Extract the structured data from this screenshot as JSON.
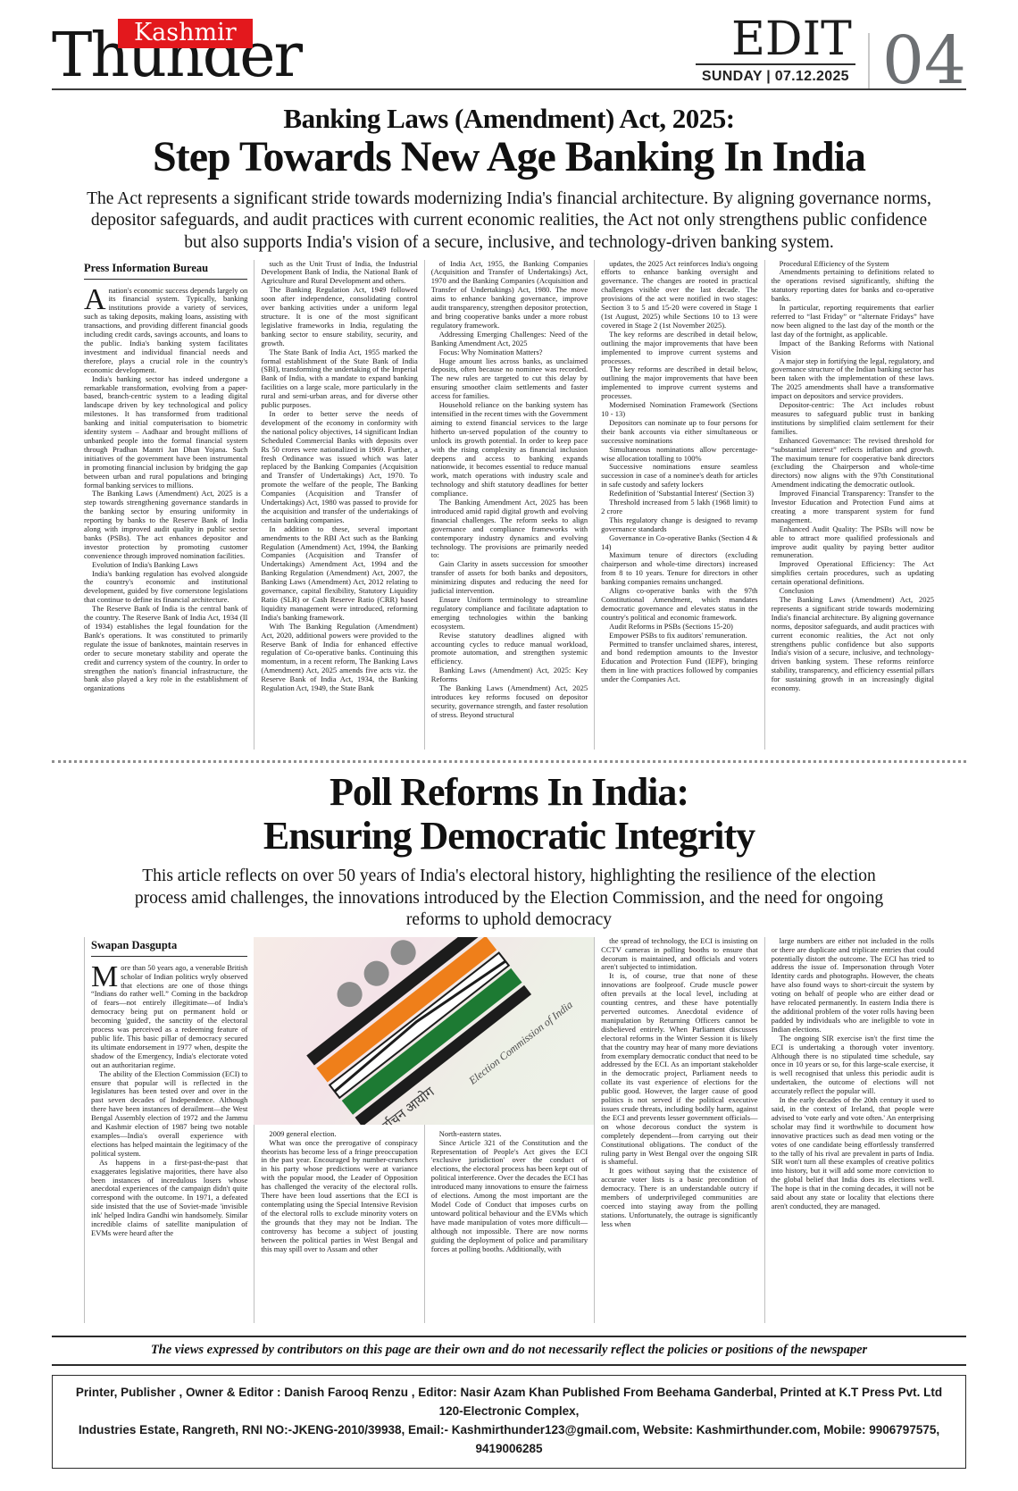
{
  "masthead": {
    "brand_top": "Kashmir",
    "brand_main": "Thunder",
    "section": "EDIT",
    "date": "SUNDAY | 07.12.2025",
    "page_number": "04"
  },
  "colors": {
    "brand_red": "#e3181d",
    "page_number_gray": "#6d7073",
    "saffron": "#ef7f1a",
    "green": "#1d7a33"
  },
  "article1": {
    "kicker": "Banking Laws (Amendment) Act, 2025:",
    "headline": "Step Towards New Age Banking In India",
    "standfirst": "The Act represents a significant stride towards modernizing India's financial architecture. By aligning governance norms, depositor safeguards, and audit practices with current economic realities, the Act not only strengthens public confidence but also supports India's vision of a secure, inclusive, and technology-driven banking system.",
    "byline": "Press Information Bureau",
    "columns": [
      [
        "A nation's economic success depends largely on its financial system. Typically, banking institutions provide a variety of services, such as taking deposits, making loans, assisting with transactions, and providing different financial goods including credit cards, savings accounts, and loans to the public. India's banking system facilitates investment and individual financial needs and therefore, plays a crucial role in the country's economic development.",
        "India's banking sector has indeed undergone a remarkable transformation, evolving from a paper-based, branch-centric system to a leading digital landscape driven by key technological and policy milestones. It has transformed from traditional banking and initial computerisation to biometric identity system – Aadhaar and brought millions of unbanked people into the formal financial system through Pradhan Mantri Jan Dhan Yojana. Such initiatives of the government have been instrumental in promoting financial inclusion by bridging the gap between urban and rural populations and bringing formal banking services to millions.",
        "The Banking Laws (Amendment) Act, 2025 is a step towards strengthening governance standards in the banking sector by ensuring uniformity in reporting by banks to the Reserve Bank of India along with improved audit quality in public sector banks (PSBs). The act enhances depositor and investor protection by promoting customer convenience through improved nomination facilities.",
        "Evolution of India's Banking Laws",
        "India's banking regulation has evolved alongside the country's economic and institutional development, guided by five cornerstone legislations that continue to define its financial architecture.",
        "The Reserve Bank of India is the central bank of the country. The Reserve Bank of India Act, 1934 (II of 1934) establishes the legal foundation for the Bank's operations. It was constituted to primarily regulate the issue of banknotes, maintain reserves in order to secure monetary stability and operate the credit and currency system of the country. In order to strengthen the nation's financial infrastructure, the bank also played a key role in the establishment of organizations"
      ],
      [
        "such as the Unit Trust of India, the Industrial Development Bank of India, the National Bank of Agriculture and Rural Development and others.",
        "The Banking Regulation Act, 1949 followed soon after independence, consolidating control over banking activities under a uniform legal structure. It is one of the most significant legislative frameworks in India, regulating the banking sector to ensure stability, security, and growth.",
        "The State Bank of India Act, 1955 marked the formal establishment of the State Bank of India (SBI), transforming the undertaking of the Imperial Bank of India, with a mandate to expand banking facilities on a large scale, more particularly in the rural and semi-urban areas, and for diverse other public purposes.",
        "In order to better serve the needs of development of the economy in conformity with the national policy objectives, 14 significant Indian Scheduled Commercial Banks with deposits over Rs 50 crores were nationalized in 1969. Further, a fresh Ordinance was issued which was later replaced by the Banking Companies (Acquisition and Transfer of Undertakings) Act, 1970. To promote the welfare of the people, The Banking Companies (Acquisition and Transfer of Undertakings) Act, 1980 was passed to provide for the acquisition and transfer of the undertakings of certain banking companies.",
        "In addition to these, several important amendments to the RBI Act such as the Banking Regulation (Amendment) Act, 1994, the Banking Companies (Acquisition and Transfer of Undertakings) Amendment Act, 1994 and the Banking Regulation (Amendment) Act, 2007, the Banking Laws (Amendment) Act, 2012 relating to governance, capital flexibility, Statutory Liquidity Ratio (SLR) or Cash Reserve Ratio (CRR) based liquidity management were introduced, reforming India's banking framework.",
        "With The Banking Regulation (Amendment) Act, 2020, additional powers were provided to the Reserve Bank of India for enhanced effective regulation of Co-operative banks. Continuing this momentum, in a recent reform, The Banking Laws (Amendment) Act, 2025 amends five acts viz. the Reserve Bank of India Act, 1934, the Banking Regulation Act, 1949, the State Bank"
      ],
      [
        "of India Act, 1955, the Banking Companies (Acquisition and Transfer of Undertakings) Act, 1970 and the Banking Companies (Acquisition and Transfer of Undertakings) Act, 1980. The move aims to enhance banking governance, improve audit transparency, strengthen depositor protection, and bring cooperative banks under a more robust regulatory framework.",
        "Addressing Emerging Challenges: Need of the Banking Amendment Act, 2025",
        "Focus: Why Nomination Matters?",
        "Huge amount lies across banks, as unclaimed deposits, often because no nominee was recorded. The new rules are targeted to cut this delay by ensuring smoother claim settlements and faster access for families.",
        "Household reliance on the banking system has intensified in the recent times with the Government aiming to extend financial services to the large hitherto un-served population of the country to unlock its growth potential. In order to keep pace with the rising complexity as financial inclusion deepens and access to banking expands nationwide, it becomes essential to reduce manual work, match operations with industry scale and technology and shift statutory deadlines for better compliance.",
        "The Banking Amendment Act, 2025 has been introduced amid rapid digital growth and evolving financial challenges. The reform seeks to align governance and compliance frameworks with contemporary industry dynamics and evolving technology. The provisions are primarily needed to:",
        "Gain Clarity in assets succession for smoother transfer of assets for both banks and depositors, minimizing disputes and reducing the need for judicial intervention.",
        "Ensure Uniform terminology to streamline regulatory compliance and facilitate adaptation to emerging technologies within the banking ecosystem.",
        "Revise statutory deadlines aligned with accounting cycles to reduce manual workload, promote automation, and strengthen systemic efficiency.",
        "Banking Laws (Amendment) Act, 2025: Key Reforms",
        "The Banking Laws (Amendment) Act, 2025 introduces key reforms focused on depositor security, governance strength, and faster resolution of stress. Beyond structural"
      ],
      [
        "updates, the 2025 Act reinforces India's ongoing efforts to enhance banking oversight and governance. The changes are rooted in practical challenges visible over the last decade. The provisions of the act were notified in two stages: Section 3 to 5 and 15-20 were covered in Stage 1 (1st August, 2025) while Sections 10 to 13 were covered in Stage 2 (1st November 2025).",
        "The key reforms are described in detail below, outlining the major improvements that have been implemented to improve current systems and processes.",
        "The key reforms are described in detail below, outlining the major improvements that have been implemented to improve current systems and processes.",
        "Modernised Nomination Framework (Sections 10 - 13)",
        "Depositors can nominate up to four persons for their bank accounts via either simultaneous or successive nominations",
        "Simultaneous nominations allow percentage-wise allocation totalling to 100%",
        "Successive nominations ensure seamless succession in case of a nominee's death for articles in safe custody and safety lockers",
        "Redefinition of 'Substantial Interest' (Section 3)",
        "Threshold increased from 5 lakh (1968 limit) to 2 crore",
        "This regulatory change is designed to revamp governance standards",
        "Governance in Co-operative Banks (Section 4 & 14)",
        "Maximum tenure of directors (excluding chairperson and whole-time directors) increased from 8 to 10 years. Tenure for directors in other banking companies remains unchanged.",
        "Aligns co-operative banks with the 97th Constitutional Amendment, which mandates democratic governance and elevates status in the country's political and economic framework.",
        "Audit Reforms in PSBs (Sections 15-20)",
        "Empower PSBs to fix auditors' remuneration.",
        "Permitted to transfer unclaimed shares, interest, and bond redemption amounts to the Investor Education and Protection Fund (IEPF), bringing them in line with practices followed by companies under the Companies Act."
      ],
      [
        "Procedural Efficiency of the System",
        "Amendments pertaining to definitions related to the operations revised significantly, shifting the statutory reporting dates for banks and co-operative banks.",
        "In particular, reporting requirements that earlier referred to “last Friday” or “alternate Fridays” have now been aligned to the last day of the month or the last day of the fortnight, as applicable.",
        "Impact of the Banking Reforms with National Vision",
        "A major step in fortifying the legal, regulatory, and governance structure of the Indian banking sector has been taken with the implementation of these laws. The 2025 amendments shall have a transformative impact on depositors and service providers.",
        "Depositor-centric: The Act includes robust measures to safeguard public trust in banking institutions by simplified claim settlement for their families.",
        "Enhanced Governance: The revised threshold for “substantial interest” reflects inflation and growth. The maximum tenure for cooperative bank directors (excluding the Chairperson and whole-time directors) now aligns with the 97th Constitutional Amendment indicating the democratic outlook.",
        "Improved Financial Transparency: Transfer to the Investor Education and Protection Fund aims at creating a more transparent system for fund management.",
        "Enhanced Audit Quality: The PSBs will now be able to attract more qualified professionals and improve audit quality by paying better auditor remuneration.",
        "Improved Operational Efficiency: The Act simplifies certain procedures, such as updating certain operational definitions.",
        "Conclusion",
        "The Banking Laws (Amendment) Act, 2025 represents a significant stride towards modernizing India's financial architecture. By aligning governance norms, depositor safeguards, and audit practices with current economic realities, the Act not only strengthens public confidence but also supports India's vision of a secure, inclusive, and technology-driven banking system. These reforms reinforce stability, transparency, and efficiency essential pillars for sustaining growth in an increasingly digital economy."
      ]
    ]
  },
  "article2": {
    "headline_line1": "Poll Reforms In India:",
    "headline_line2": "Ensuring Democratic Integrity",
    "standfirst": "This article reflects on over 50 years of India's electoral history, highlighting the resilience of the election process amid challenges, the innovations introduced by the Election Commission, and the need for ongoing reforms to uphold democracy",
    "byline": "Swapan Dasgupta",
    "image": {
      "hindi_text": "भारत निर्वाचन आयोग",
      "english_text": "Election Commission of India"
    },
    "columns": [
      [
        "More than 50 years ago, a venerable British scholar of Indian politics wryly observed that elections are one of those things “Indians do rather well.” Coming in the backdrop of fears—not entirely illegitimate—of India's democracy being put on permanent hold or becoming 'guided', the sanctity of the electoral process was perceived as a redeeming feature of public life. This basic pillar of democracy secured its ultimate endorsement in 1977 when, despite the shadow of the Emergency, India's electorate voted out an authoritarian regime.",
        "The ability of the Election Commission (ECI) to ensure that popular will is reflected in the legislatures has been tested over and over in the past seven decades of Independence. Although there have been instances of derailment—the West Bengal Assembly election of 1972 and the Jammu and Kashmir election of 1987 being two notable examples—India's overall experience with elections has helped maintain the legitimacy of the political system.",
        "As happens in a first-past-the-past that exaggerates legislative majorities, there have also been instances of incredulous losers whose anecdotal experiences of the campaign didn't quite correspond with the outcome. In 1971, a defeated side insisted that the use of Soviet-made 'invisible ink' helped Indira Gandhi win handsomely. Similar incredible claims of satellite manipulation of EVMs were heard after the"
      ],
      [
        "2009 general election.",
        "What was once the prerogative of conspiracy theorists has become less of a fringe preoccupation in the past year. Encouraged by number-crunchers in his party whose predictions were at variance with the popular mood, the Leader of Opposition has challenged the veracity of the electoral rolls. There have been loud assertions that the ECI is contemplating using the Special Intensive Revision of the electoral rolls to exclude minority voters on the grounds that they may not be Indian. The controversy has become a subject of jousting between the political parties in West Bengal and this may spill over to Assam and other"
      ],
      [
        "North-eastern states.",
        "Since Article 321 of the Constitution and the Representation of People's Act gives the ECI 'exclusive jurisdiction' over the conduct of elections, the electoral process has been kept out of political interference. Over the decades the ECI has introduced many innovations to ensure the fairness of elections. Among the most important are the Model Code of Conduct that imposes curbs on untoward political behaviour and the EVMs which have made manipulation of votes more difficult—although not impossible. There are now norms guiding the deployment of police and paramilitary forces at polling booths. Additionally, with"
      ],
      [
        "the spread of technology, the ECI is insisting on CCTV cameras in polling booths to ensure that decorum is maintained, and officials and voters aren't subjected to intimidation.",
        "It is, of course, true that none of these innovations are foolproof. Crude muscle power often prevails at the local level, including at counting centres, and these have potentially perverted outcomes. Anecdotal evidence of manipulation by Returning Officers cannot be disbelieved entirely. When Parliament discusses electoral reforms in the Winter Session it is likely that the country may hear of many more deviations from exemplary democratic conduct that need to be addressed by the ECI. As an important stakeholder in the democratic project, Parliament needs to collate its vast experience of elections for the public good. However, the larger cause of good politics is not served if the political executive issues crude threats, including bodily harm, against the ECI and prevents lesser government officials—on whose decorous conduct the system is completely dependent—from carrying out their Constitutional obligations. The conduct of the ruling party in West Bengal over the ongoing SIR is shameful.",
        "It goes without saying that the existence of accurate voter lists is a basic precondition of democracy. There is an understandable outcry if members of underprivileged communities are coerced into staying away from the polling stations. Unfortunately, the outrage is significantly less when"
      ],
      [
        "large numbers are either not included in the rolls or there are duplicate and triplicate entries that could potentially distort the outcome. The ECI has tried to address the issue of. Impersonation through Voter Identity cards and photographs. However, the cheats have also found ways to short-circuit the system by voting on behalf of people who are either dead or have relocated permanently. In eastern India there is the additional problem of the voter rolls having been padded by individuals who are ineligible to vote in Indian elections.",
        "The ongoing SIR exercise isn't the first time the ECI is undertaking a thorough voter inventory. Although there is no stipulated time schedule, say once in 10 years or so, for this large-scale exercise, it is well recognised that unless this periodic audit is undertaken, the outcome of elections will not accurately reflect the popular will.",
        "In the early decades of the 20th century it used to said, in the context of Ireland, that people were advised to 'vote early and vote often.' An enterprising scholar may find it worthwhile to document how innovative practices such as dead men voting or the votes of one candidate being effortlessly transferred to the tally of his rival are prevalent in parts of India. SIR won't turn all these examples of creative politics into history, but it will add some more conviction to the global belief that India does its elections well. The hope is that in the coming decades, it will not be said about any state or locality that elections there aren't conducted, they are managed."
      ]
    ]
  },
  "footer": {
    "disclaimer": "The views expressed by contributors on this page are their own and do not necessarily reflect the policies or positions of the newspaper",
    "publisher_line1": "Printer, Publisher , Owner & Editor : Danish Farooq Renzu , Editor: Nasir Azam Khan Published From Beehama Ganderbal, Printed at K.T Press Pvt. Ltd 120-Electronic Complex,",
    "publisher_line2": "Industries Estate, Rangreth, RNI NO:-JKENG-2010/39938, Email:- Kashmirthunder123@gmail.com, Website: Kashmirthunder.com, Mobile: 9906797575, 9419006285"
  }
}
